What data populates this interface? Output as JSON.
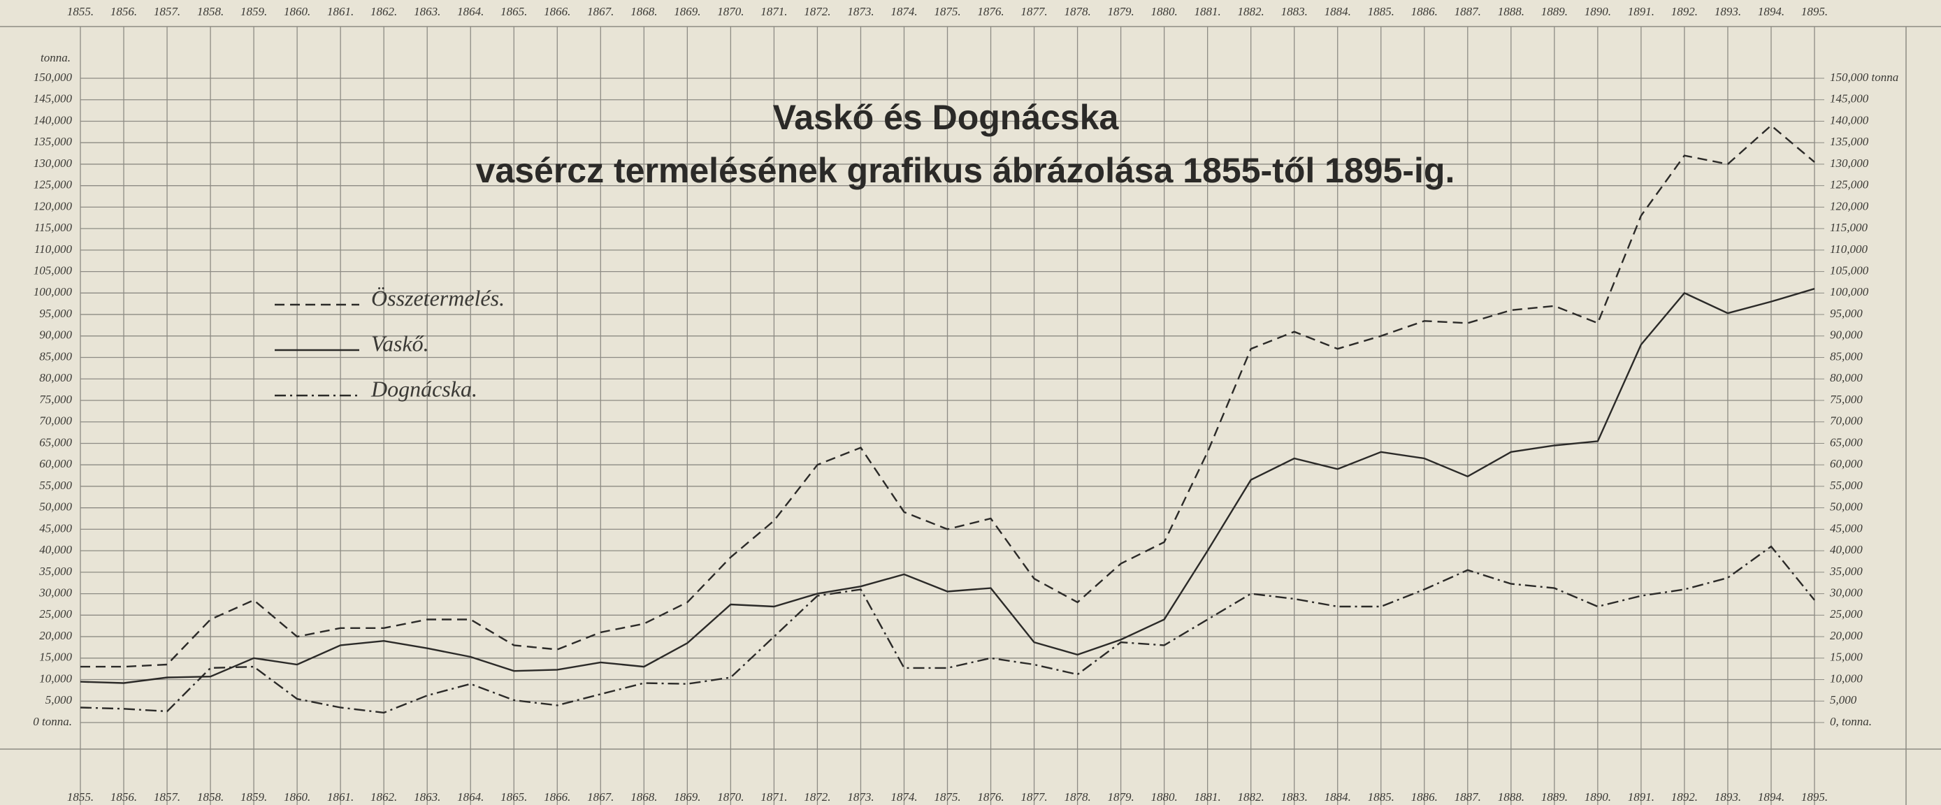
{
  "chart_data": {
    "type": "line",
    "title": "Vaskő és Dognácska",
    "subtitle": "vasércz termelésének grafikus ábrázolása 1855-től 1895-ig.",
    "y_label": "tonna.",
    "categories": [
      "1855.",
      "1856.",
      "1857.",
      "1858.",
      "1859.",
      "1860.",
      "1861.",
      "1862.",
      "1863.",
      "1864.",
      "1865.",
      "1866.",
      "1867.",
      "1868.",
      "1869.",
      "1870.",
      "1871.",
      "1872.",
      "1873.",
      "1874.",
      "1875.",
      "1876.",
      "1877.",
      "1878.",
      "1879.",
      "1880.",
      "1881.",
      "1882.",
      "1883.",
      "1884.",
      "1885.",
      "1886.",
      "1887.",
      "1888.",
      "1889.",
      "1890.",
      "1891.",
      "1892.",
      "1893.",
      "1894.",
      "1895."
    ],
    "series": [
      {
        "name": "Összetermelés.",
        "color": "#2b2a28",
        "dash": "dashed",
        "values": [
          13000,
          13000,
          13500,
          24000,
          28500,
          20000,
          22000,
          22000,
          24000,
          24000,
          18000,
          17000,
          21000,
          23000,
          28000,
          38500,
          47000,
          60000,
          64000,
          49000,
          45000,
          47500,
          33500,
          28000,
          37000,
          42000,
          63000,
          87000,
          91000,
          87000,
          90000,
          93500,
          93000,
          96000,
          97000,
          93000,
          118000,
          132000,
          130000,
          139000,
          130500
        ]
      },
      {
        "name": "Vaskő.",
        "color": "#2b2a28",
        "dash": "solid",
        "values": [
          9500,
          9200,
          10500,
          10700,
          15000,
          13500,
          18000,
          19000,
          17300,
          15300,
          12000,
          12300,
          14000,
          13000,
          18500,
          27500,
          27000,
          30000,
          31700,
          34500,
          30500,
          31300,
          18700,
          15800,
          19300,
          24000,
          40000,
          56500,
          61500,
          59000,
          63000,
          61500,
          57300,
          63000,
          64500,
          65500,
          88000,
          100000,
          95300,
          98000,
          101000
        ]
      },
      {
        "name": "Dognácska.",
        "color": "#2b2a28",
        "dash": "dashdot",
        "values": [
          3500,
          3200,
          2600,
          12700,
          13000,
          5500,
          3500,
          2300,
          6300,
          9000,
          5200,
          4000,
          6600,
          9200,
          9000,
          10500,
          20000,
          29500,
          31000,
          12700,
          12700,
          15000,
          13500,
          11200,
          18700,
          18000,
          24000,
          30000,
          28800,
          27000,
          27000,
          31000,
          35500,
          32300,
          31300,
          27000,
          29500,
          31000,
          33700,
          41000,
          28500
        ]
      }
    ],
    "ylim": [
      0,
      150000
    ],
    "yticks": [
      {
        "value": 0,
        "label": "0 tonna."
      },
      {
        "value": 5000,
        "label": "5,000"
      },
      {
        "value": 10000,
        "label": "10,000"
      },
      {
        "value": 15000,
        "label": "15,000"
      },
      {
        "value": 20000,
        "label": "20,000"
      },
      {
        "value": 25000,
        "label": "25,000"
      },
      {
        "value": 30000,
        "label": "30,000"
      },
      {
        "value": 35000,
        "label": "35,000"
      },
      {
        "value": 40000,
        "label": "40,000"
      },
      {
        "value": 45000,
        "label": "45,000"
      },
      {
        "value": 50000,
        "label": "50,000"
      },
      {
        "value": 55000,
        "label": "55,000"
      },
      {
        "value": 60000,
        "label": "60,000"
      },
      {
        "value": 65000,
        "label": "65,000"
      },
      {
        "value": 70000,
        "label": "70,000"
      },
      {
        "value": 75000,
        "label": "75,000"
      },
      {
        "value": 80000,
        "label": "80,000"
      },
      {
        "value": 85000,
        "label": "85,000"
      },
      {
        "value": 90000,
        "label": "90,000"
      },
      {
        "value": 95000,
        "label": "95,000"
      },
      {
        "value": 100000,
        "label": "100,000"
      },
      {
        "value": 105000,
        "label": "105,000"
      },
      {
        "value": 110000,
        "label": "110,000"
      },
      {
        "value": 115000,
        "label": "115,000"
      },
      {
        "value": 120000,
        "label": "120,000"
      },
      {
        "value": 125000,
        "label": "125,000"
      },
      {
        "value": 130000,
        "label": "130,000"
      },
      {
        "value": 135000,
        "label": "135,000"
      },
      {
        "value": 140000,
        "label": "140,000"
      },
      {
        "value": 145000,
        "label": "145,000"
      },
      {
        "value": 150000,
        "label": "150,000"
      }
    ],
    "y2lim": [
      0,
      150000
    ],
    "y2ticks": [
      {
        "value": 0,
        "label": "0, tonna."
      },
      {
        "value": 5000,
        "label": "5,000"
      },
      {
        "value": 10000,
        "label": "10,000"
      },
      {
        "value": 15000,
        "label": "15,000"
      },
      {
        "value": 20000,
        "label": "20,000"
      },
      {
        "value": 25000,
        "label": "25,000"
      },
      {
        "value": 30000,
        "label": "30,000"
      },
      {
        "value": 35000,
        "label": "35,000"
      },
      {
        "value": 40000,
        "label": "40,000"
      },
      {
        "value": 45000,
        "label": "45,000"
      },
      {
        "value": 50000,
        "label": "50,000"
      },
      {
        "value": 55000,
        "label": "55,000"
      },
      {
        "value": 60000,
        "label": "60,000"
      },
      {
        "value": 65000,
        "label": "65,000"
      },
      {
        "value": 70000,
        "label": "70,000"
      },
      {
        "value": 75000,
        "label": "75,000"
      },
      {
        "value": 80000,
        "label": "80,000"
      },
      {
        "value": 85000,
        "label": "85,000"
      },
      {
        "value": 90000,
        "label": "90,000"
      },
      {
        "value": 95000,
        "label": "95,000"
      },
      {
        "value": 100000,
        "label": "100,000"
      },
      {
        "value": 105000,
        "label": "105,000"
      },
      {
        "value": 110000,
        "label": "110,000"
      },
      {
        "value": 115000,
        "label": "115,000"
      },
      {
        "value": 120000,
        "label": "120,000"
      },
      {
        "value": 125000,
        "label": "125,000"
      },
      {
        "value": 130000,
        "label": "130,000"
      },
      {
        "value": 135000,
        "label": "135,000"
      },
      {
        "value": 140000,
        "label": "140,000"
      },
      {
        "value": 145000,
        "label": "145,000"
      },
      {
        "value": 150000,
        "label": "150,000 tonna"
      }
    ],
    "grid": true,
    "background": "#e8e4d6",
    "grid_color": "#8d8b84"
  }
}
